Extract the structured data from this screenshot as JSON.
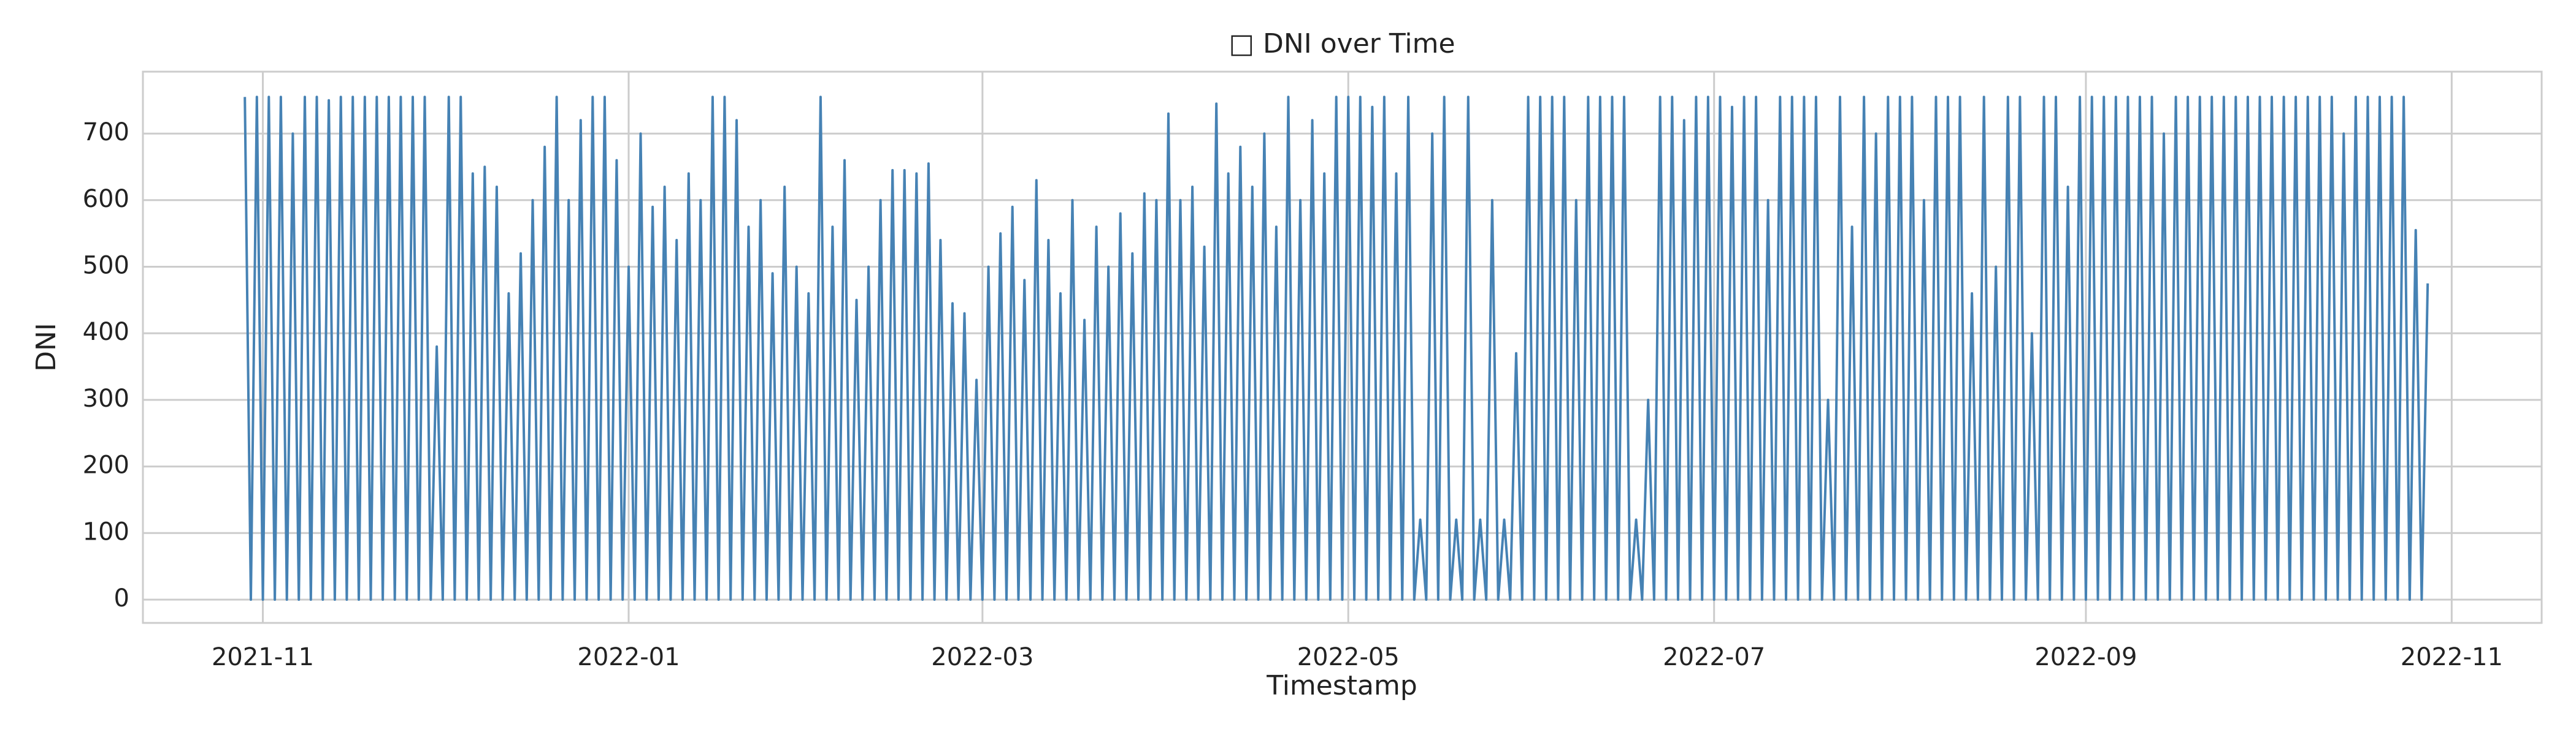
{
  "chart_data": {
    "type": "line",
    "title": "□ DNI over Time",
    "x_label": "Timestamp",
    "y_label": "DNI",
    "x": [
      "2021-10-29",
      "2021-10-30",
      "2021-10-31",
      "2021-11-01",
      "2021-11-02",
      "2021-11-03",
      "2021-11-04",
      "2021-11-05",
      "2021-11-06",
      "2021-11-07",
      "2021-11-08",
      "2021-11-09",
      "2021-11-10",
      "2021-11-11",
      "2021-11-12",
      "2021-11-13",
      "2021-11-14",
      "2021-11-15",
      "2021-11-16",
      "2021-11-17",
      "2021-11-18",
      "2021-11-19",
      "2021-11-20",
      "2021-11-21",
      "2021-11-22",
      "2021-11-23",
      "2021-11-24",
      "2021-11-25",
      "2021-11-26",
      "2021-11-27",
      "2021-11-28",
      "2021-11-29",
      "2021-11-30",
      "2021-12-01",
      "2021-12-02",
      "2021-12-03",
      "2021-12-04",
      "2021-12-05",
      "2021-12-06",
      "2021-12-07",
      "2021-12-08",
      "2021-12-09",
      "2021-12-10",
      "2021-12-11",
      "2021-12-12",
      "2021-12-13",
      "2021-12-14",
      "2021-12-15",
      "2021-12-16",
      "2021-12-17",
      "2021-12-18",
      "2021-12-19",
      "2021-12-20",
      "2021-12-21",
      "2021-12-22",
      "2021-12-23",
      "2021-12-24",
      "2021-12-25",
      "2021-12-26",
      "2021-12-27",
      "2021-12-28",
      "2021-12-29",
      "2021-12-30",
      "2021-12-31",
      "2022-01-01",
      "2022-01-02",
      "2022-01-03",
      "2022-01-04",
      "2022-01-05",
      "2022-01-06",
      "2022-01-07",
      "2022-01-08",
      "2022-01-09",
      "2022-01-10",
      "2022-01-11",
      "2022-01-12",
      "2022-01-13",
      "2022-01-14",
      "2022-01-15",
      "2022-01-16",
      "2022-01-17",
      "2022-01-18",
      "2022-01-19",
      "2022-01-20",
      "2022-01-21",
      "2022-01-22",
      "2022-01-23",
      "2022-01-24",
      "2022-01-25",
      "2022-01-26",
      "2022-01-27",
      "2022-01-28",
      "2022-01-29",
      "2022-01-30",
      "2022-01-31",
      "2022-02-01",
      "2022-02-02",
      "2022-02-03",
      "2022-02-04",
      "2022-02-05",
      "2022-02-06",
      "2022-02-07",
      "2022-02-08",
      "2022-02-09",
      "2022-02-10",
      "2022-02-11",
      "2022-02-12",
      "2022-02-13",
      "2022-02-14",
      "2022-02-15",
      "2022-02-16",
      "2022-02-17",
      "2022-02-18",
      "2022-02-19",
      "2022-02-20",
      "2022-02-21",
      "2022-02-22",
      "2022-02-23",
      "2022-02-24",
      "2022-02-25",
      "2022-02-26",
      "2022-02-27",
      "2022-02-28",
      "2022-03-01",
      "2022-03-02",
      "2022-03-03",
      "2022-03-04",
      "2022-03-05",
      "2022-03-06",
      "2022-03-07",
      "2022-03-08",
      "2022-03-09",
      "2022-03-10",
      "2022-03-11",
      "2022-03-12",
      "2022-03-13",
      "2022-03-14",
      "2022-03-15",
      "2022-03-16",
      "2022-03-17",
      "2022-03-18",
      "2022-03-19",
      "2022-03-20",
      "2022-03-21",
      "2022-03-22",
      "2022-03-23",
      "2022-03-24",
      "2022-03-25",
      "2022-03-26",
      "2022-03-27",
      "2022-03-28",
      "2022-03-29",
      "2022-03-30",
      "2022-03-31",
      "2022-04-01",
      "2022-04-02",
      "2022-04-03",
      "2022-04-04",
      "2022-04-05",
      "2022-04-06",
      "2022-04-07",
      "2022-04-08",
      "2022-04-09",
      "2022-04-10",
      "2022-04-11",
      "2022-04-12",
      "2022-04-13",
      "2022-04-14",
      "2022-04-15",
      "2022-04-16",
      "2022-04-17",
      "2022-04-18",
      "2022-04-19",
      "2022-04-20",
      "2022-04-21",
      "2022-04-22",
      "2022-04-23",
      "2022-04-24",
      "2022-04-25",
      "2022-04-26",
      "2022-04-27",
      "2022-04-28",
      "2022-04-29",
      "2022-04-30",
      "2022-05-01",
      "2022-05-02",
      "2022-05-03",
      "2022-05-04",
      "2022-05-05",
      "2022-05-06",
      "2022-05-07",
      "2022-05-08",
      "2022-05-09",
      "2022-05-10",
      "2022-05-11",
      "2022-05-12",
      "2022-05-13",
      "2022-05-14",
      "2022-05-15",
      "2022-05-16",
      "2022-05-17",
      "2022-05-18",
      "2022-05-19",
      "2022-05-20",
      "2022-05-21",
      "2022-05-22",
      "2022-05-23",
      "2022-05-24",
      "2022-05-25",
      "2022-05-26",
      "2022-05-27",
      "2022-05-28",
      "2022-05-29",
      "2022-05-30",
      "2022-05-31",
      "2022-06-01",
      "2022-06-02",
      "2022-06-03",
      "2022-06-04",
      "2022-06-05",
      "2022-06-06",
      "2022-06-07",
      "2022-06-08",
      "2022-06-09",
      "2022-06-10",
      "2022-06-11",
      "2022-06-12",
      "2022-06-13",
      "2022-06-14",
      "2022-06-15",
      "2022-06-16",
      "2022-06-17",
      "2022-06-18",
      "2022-06-19",
      "2022-06-20",
      "2022-06-21",
      "2022-06-22",
      "2022-06-23",
      "2022-06-24",
      "2022-06-25",
      "2022-06-26",
      "2022-06-27",
      "2022-06-28",
      "2022-06-29",
      "2022-06-30",
      "2022-07-01",
      "2022-07-02",
      "2022-07-03",
      "2022-07-04",
      "2022-07-05",
      "2022-07-06",
      "2022-07-07",
      "2022-07-08",
      "2022-07-09",
      "2022-07-10",
      "2022-07-11",
      "2022-07-12",
      "2022-07-13",
      "2022-07-14",
      "2022-07-15",
      "2022-07-16",
      "2022-07-17",
      "2022-07-18",
      "2022-07-19",
      "2022-07-20",
      "2022-07-21",
      "2022-07-22",
      "2022-07-23",
      "2022-07-24",
      "2022-07-25",
      "2022-07-26",
      "2022-07-27",
      "2022-07-28",
      "2022-07-29",
      "2022-07-30",
      "2022-07-31",
      "2022-08-01",
      "2022-08-02",
      "2022-08-03",
      "2022-08-04",
      "2022-08-05",
      "2022-08-06",
      "2022-08-07",
      "2022-08-08",
      "2022-08-09",
      "2022-08-10",
      "2022-08-11",
      "2022-08-12",
      "2022-08-13",
      "2022-08-14",
      "2022-08-15",
      "2022-08-16",
      "2022-08-17",
      "2022-08-18",
      "2022-08-19",
      "2022-08-20",
      "2022-08-21",
      "2022-08-22",
      "2022-08-23",
      "2022-08-24",
      "2022-08-25",
      "2022-08-26",
      "2022-08-27",
      "2022-08-28",
      "2022-08-29",
      "2022-08-30",
      "2022-08-31",
      "2022-09-01",
      "2022-09-02",
      "2022-09-03",
      "2022-09-04",
      "2022-09-05",
      "2022-09-06",
      "2022-09-07",
      "2022-09-08",
      "2022-09-09",
      "2022-09-10",
      "2022-09-11",
      "2022-09-12",
      "2022-09-13",
      "2022-09-14",
      "2022-09-15",
      "2022-09-16",
      "2022-09-17",
      "2022-09-18",
      "2022-09-19",
      "2022-09-20",
      "2022-09-21",
      "2022-09-22",
      "2022-09-23",
      "2022-09-24",
      "2022-09-25",
      "2022-09-26",
      "2022-09-27",
      "2022-09-28",
      "2022-09-29",
      "2022-09-30",
      "2022-10-01",
      "2022-10-02",
      "2022-10-03",
      "2022-10-04",
      "2022-10-05",
      "2022-10-06",
      "2022-10-07",
      "2022-10-08",
      "2022-10-09",
      "2022-10-10",
      "2022-10-11",
      "2022-10-12",
      "2022-10-13",
      "2022-10-14",
      "2022-10-15",
      "2022-10-16",
      "2022-10-17",
      "2022-10-18",
      "2022-10-19",
      "2022-10-20",
      "2022-10-21",
      "2022-10-22",
      "2022-10-23",
      "2022-10-24",
      "2022-10-25",
      "2022-10-26",
      "2022-10-27",
      "2022-10-28"
    ],
    "series": [
      {
        "color": "#4682b4",
        "values": [
          755,
          0,
          755,
          0,
          755,
          0,
          755,
          0,
          700,
          0,
          755,
          0,
          755,
          0,
          750,
          0,
          755,
          0,
          755,
          0,
          755,
          0,
          755,
          0,
          755,
          0,
          755,
          0,
          755,
          0,
          755,
          0,
          380,
          0,
          755,
          0,
          755,
          0,
          640,
          0,
          650,
          0,
          620,
          0,
          460,
          0,
          520,
          0,
          600,
          0,
          680,
          0,
          755,
          0,
          600,
          0,
          720,
          0,
          755,
          0,
          755,
          0,
          660,
          0,
          500,
          0,
          700,
          0,
          590,
          0,
          620,
          0,
          540,
          0,
          640,
          0,
          600,
          0,
          755,
          0,
          755,
          0,
          720,
          0,
          560,
          0,
          600,
          0,
          490,
          0,
          620,
          0,
          500,
          0,
          460,
          0,
          755,
          0,
          560,
          0,
          660,
          0,
          450,
          0,
          500,
          0,
          600,
          0,
          645,
          0,
          645,
          0,
          640,
          0,
          655,
          0,
          540,
          0,
          445,
          0,
          430,
          0,
          330,
          0,
          500,
          0,
          550,
          0,
          590,
          0,
          480,
          0,
          630,
          0,
          540,
          0,
          460,
          0,
          600,
          0,
          420,
          0,
          560,
          0,
          500,
          0,
          580,
          0,
          520,
          0,
          610,
          0,
          600,
          0,
          730,
          0,
          600,
          0,
          620,
          0,
          530,
          0,
          745,
          0,
          640,
          0,
          680,
          0,
          620,
          0,
          700,
          0,
          560,
          0,
          755,
          0,
          600,
          0,
          720,
          0,
          640,
          0,
          755,
          0,
          755,
          0,
          755,
          0,
          740,
          0,
          755,
          0,
          640,
          0,
          755,
          0,
          120,
          0,
          700,
          0,
          755,
          0,
          120,
          0,
          755,
          0,
          120,
          0,
          600,
          0,
          120,
          0,
          370,
          0,
          755,
          0,
          755,
          0,
          755,
          0,
          755,
          0,
          600,
          0,
          755,
          0,
          755,
          0,
          755,
          0,
          755,
          0,
          120,
          0,
          300,
          0,
          755,
          0,
          755,
          0,
          720,
          0,
          755,
          0,
          755,
          0,
          755,
          0,
          740,
          0,
          755,
          0,
          755,
          0,
          600,
          0,
          755,
          0,
          755,
          0,
          755,
          0,
          755,
          0,
          300,
          0,
          755,
          0,
          560,
          0,
          755,
          0,
          700,
          0,
          755,
          0,
          755,
          0,
          755,
          0,
          600,
          0,
          755,
          0,
          755,
          0,
          755,
          0,
          460,
          0,
          755,
          0,
          500,
          0,
          755,
          0,
          755,
          0,
          400,
          0,
          755,
          0,
          755,
          0,
          620,
          0,
          755,
          0,
          755,
          0,
          755,
          0,
          755,
          0,
          755,
          0,
          755,
          0,
          755,
          0,
          700,
          0,
          755,
          0,
          755,
          0,
          755,
          0,
          755,
          0,
          755,
          0,
          755,
          0,
          755,
          0,
          755,
          0,
          755,
          0,
          755,
          0,
          755,
          0,
          755,
          0,
          755,
          0,
          755,
          0,
          700,
          0,
          755,
          0,
          755,
          0,
          755,
          0,
          755,
          0,
          755,
          0,
          555,
          0,
          475
        ]
      }
    ],
    "xlim": [
      "2021-10-12",
      "2022-11-16"
    ],
    "xticks": [
      {
        "value": "2021-11-01",
        "label": "2021-11"
      },
      {
        "value": "2022-01-01",
        "label": "2022-01"
      },
      {
        "value": "2022-03-01",
        "label": "2022-03"
      },
      {
        "value": "2022-05-01",
        "label": "2022-05"
      },
      {
        "value": "2022-07-01",
        "label": "2022-07"
      },
      {
        "value": "2022-09-01",
        "label": "2022-09"
      },
      {
        "value": "2022-11-01",
        "label": "2022-11"
      }
    ],
    "ylim": [
      -35,
      793
    ],
    "yticks": [
      0,
      100,
      200,
      300,
      400,
      500,
      600,
      700
    ],
    "grid": true
  }
}
